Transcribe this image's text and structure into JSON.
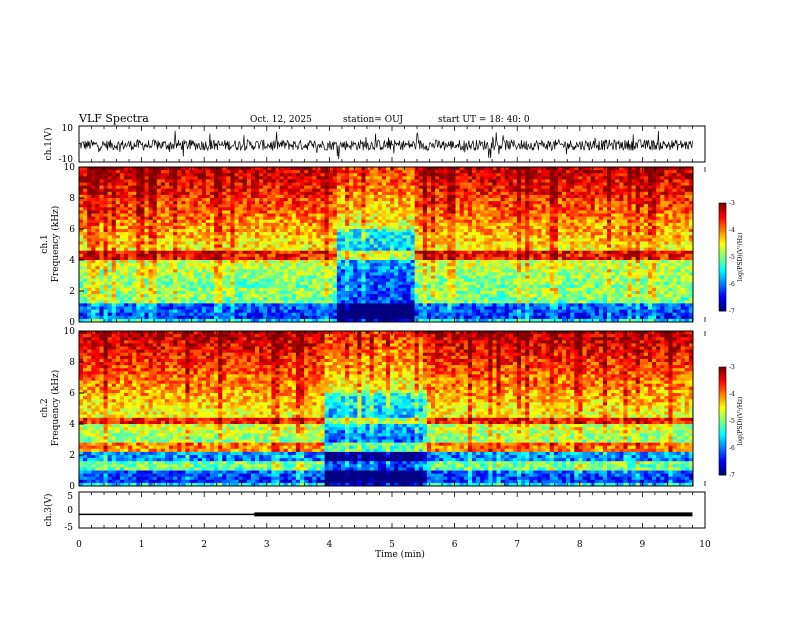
{
  "header": {
    "title": "VLF Spectra",
    "date": "Oct. 12, 2025",
    "station": "station= OUJ",
    "start": "start  UT =   18: 40: 0"
  },
  "colorbar": {
    "label": "log(PSD)(V²/Hz)",
    "ticks": [
      "-3",
      "-4",
      "-5",
      "-6",
      "-7"
    ]
  },
  "chart_data": [
    {
      "type": "line",
      "name": "ch1-waveform",
      "ylabel": "ch.1(V)",
      "ylim": [
        -10,
        10
      ],
      "yticks": [
        "10",
        "-10"
      ],
      "description_values": {
        "mean": 0,
        "typical_amplitude": 3,
        "peak_amplitude": 8
      }
    },
    {
      "type": "heatmap",
      "name": "ch1-spectrogram",
      "ylabel": "ch.1\nFrequency  (kHz)",
      "ylim": [
        0,
        10
      ],
      "yticks": [
        "10",
        "8",
        "6",
        "4",
        "2",
        "0"
      ],
      "color_range": [
        -7,
        -3
      ],
      "quiet_interval_min": [
        4.1,
        5.3
      ],
      "strong_bands_khz": [
        1.5,
        2.0,
        4.3
      ]
    },
    {
      "type": "heatmap",
      "name": "ch2-spectrogram",
      "ylabel": "ch.2\nFrequency  (kHz)",
      "ylim": [
        0,
        10
      ],
      "yticks": [
        "10",
        "8",
        "6",
        "4",
        "2",
        "0"
      ],
      "color_range": [
        -7,
        -3
      ],
      "quiet_interval_min": [
        3.9,
        5.5
      ],
      "strong_bands_khz": [
        1.3,
        2.5,
        4.2
      ]
    },
    {
      "type": "line",
      "name": "ch3-trace",
      "ylabel": "ch.3(V)",
      "ylim": [
        -5,
        5
      ],
      "yticks": [
        "5",
        "0",
        "-5"
      ],
      "x": [
        0,
        2.8,
        2.8,
        9.8
      ],
      "y": [
        -1.2,
        -1.2,
        -1.2,
        -1.2
      ],
      "thickness_change_min": 2.8
    }
  ],
  "xaxis": {
    "label": "Time  (min)",
    "xlim": [
      0,
      10
    ],
    "ticks": [
      "0",
      "1",
      "2",
      "3",
      "4",
      "5",
      "6",
      "7",
      "8",
      "9",
      "10"
    ]
  }
}
